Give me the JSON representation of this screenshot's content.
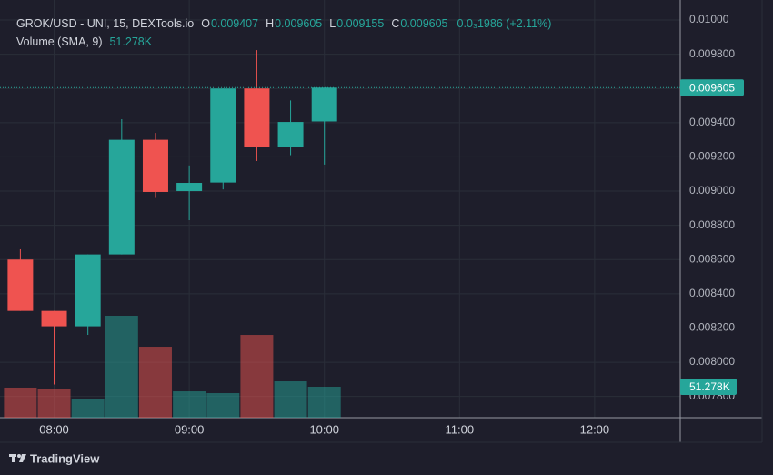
{
  "chart_data": {
    "type": "candlestick",
    "title": "GROK/USD - UNI, 15, DEXTools.io",
    "ohlc_legend": [
      {
        "label": "O",
        "value": 0.009407
      },
      {
        "label": "H",
        "value": 0.009605
      },
      {
        "label": "L",
        "value": 0.009155
      },
      {
        "label": "C",
        "value": 0.009605
      }
    ],
    "change": "0.0₃1986 (+2.11%)",
    "volume_title": "Volume (SMA, 9)",
    "volume_value_label": "51.278K",
    "x": [
      "07:45",
      "08:00",
      "08:15",
      "08:30",
      "08:45",
      "09:00",
      "09:15",
      "09:30",
      "09:45",
      "10:00"
    ],
    "open": [
      0.0086,
      0.0083,
      0.00821,
      0.00863,
      0.0093,
      0.009,
      0.00905,
      0.0096,
      0.00926,
      0.009407
    ],
    "high": [
      0.00866,
      0.0083,
      0.00863,
      0.00942,
      0.00934,
      0.00915,
      0.0096,
      0.009824,
      0.00953,
      0.009605
    ],
    "low": [
      0.0083,
      0.00787,
      0.00816,
      0.00863,
      0.00896,
      0.00883,
      0.00901,
      0.009176,
      0.00921,
      0.009155
    ],
    "close": [
      0.0083,
      0.00821,
      0.00863,
      0.0093,
      0.008995,
      0.009048,
      0.0096,
      0.00926,
      0.009404,
      0.009605
    ],
    "volume": [
      49.8,
      46.8,
      30.2,
      168.9,
      117.6,
      43.7,
      40.7,
      137.2,
      60.3,
      51.278
    ],
    "up_color": "#26a69a",
    "down_color": "#ef5350",
    "xlim": [
      "07:40",
      "12:38"
    ],
    "xticks": [
      "08:00",
      "09:00",
      "10:00",
      "11:00",
      "12:00"
    ],
    "ylim": [
      0.007676,
      0.010117
    ],
    "yticks": [
      {
        "value": 0.0078,
        "label": "0.007800"
      },
      {
        "value": 0.008,
        "label": "0.008000"
      },
      {
        "value": 0.0082,
        "label": "0.008200"
      },
      {
        "value": 0.0084,
        "label": "0.008400"
      },
      {
        "value": 0.0086,
        "label": "0.008600"
      },
      {
        "value": 0.0088,
        "label": "0.008800"
      },
      {
        "value": 0.009,
        "label": "0.009000"
      },
      {
        "value": 0.0092,
        "label": "0.009200"
      },
      {
        "value": 0.0094,
        "label": "0.009400"
      },
      {
        "value": 0.0096,
        "label": "0.009600"
      },
      {
        "value": 0.0098,
        "label": "0.009800"
      },
      {
        "value": 0.01,
        "label": "0.01000"
      }
    ],
    "grid": true,
    "footer": "TradingView"
  }
}
